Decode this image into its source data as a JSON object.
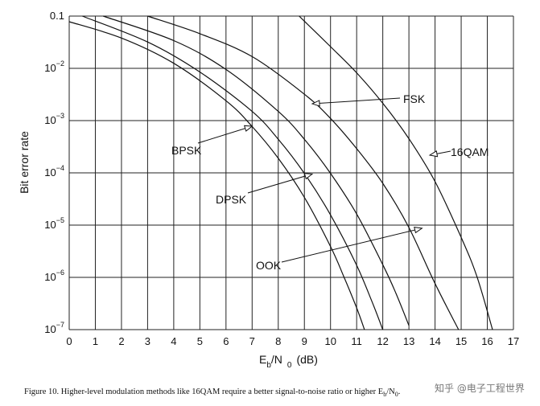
{
  "chart_data": {
    "type": "line",
    "title": "",
    "xlabel": "E_b/N_0 (dB)",
    "xlabel_parts": {
      "e": "E",
      "b": "b",
      "slash_n": "/N",
      "zero": "0",
      "unit": "(dB)"
    },
    "ylabel": "Bit error rate",
    "x_ticks": [
      "0",
      "1",
      "2",
      "3",
      "4",
      "5",
      "6",
      "7",
      "8",
      "9",
      "10",
      "11",
      "12",
      "13",
      "14",
      "15",
      "16",
      "17"
    ],
    "xlim": [
      0,
      17
    ],
    "y_scale": "log",
    "ylim": [
      1e-07,
      0.1
    ],
    "y_ticks": [
      {
        "value": 0.1,
        "base": "0.1",
        "exp": ""
      },
      {
        "value": 0.01,
        "base": "10",
        "exp": "−2"
      },
      {
        "value": 0.001,
        "base": "10",
        "exp": "−3"
      },
      {
        "value": 0.0001,
        "base": "10",
        "exp": "−4"
      },
      {
        "value": 1e-05,
        "base": "10",
        "exp": "−5"
      },
      {
        "value": 1e-06,
        "base": "10",
        "exp": "−6"
      },
      {
        "value": 1e-07,
        "base": "10",
        "exp": "−7"
      }
    ],
    "grid": true,
    "series": [
      {
        "name": "BPSK",
        "x": [
          0,
          2,
          4,
          6,
          7,
          8,
          9,
          10,
          10.5,
          11,
          11.3
        ],
        "y": [
          0.078,
          0.038,
          0.0125,
          0.0024,
          0.00077,
          0.00019,
          3.4e-05,
          3.9e-06,
          1.06e-06,
          2.6e-07,
          1e-07
        ]
      },
      {
        "name": "DPSK",
        "x": [
          0.5,
          3,
          5,
          7,
          8,
          9,
          10,
          11,
          11.6,
          12
        ],
        "y": [
          0.1,
          0.032,
          0.0085,
          0.0015,
          0.00044,
          9.8e-05,
          1.57e-05,
          1.7e-06,
          3.3e-07,
          1e-07
        ]
      },
      {
        "name": "OOK",
        "x": [
          1.3,
          4,
          6,
          8,
          9,
          10,
          11,
          12,
          12.5,
          13
        ],
        "y": [
          0.1,
          0.034,
          0.0095,
          0.0015,
          0.00044,
          9.8e-05,
          1.63e-05,
          1.75e-06,
          5e-07,
          1.2e-07
        ]
      },
      {
        "name": "FSK",
        "x": [
          3,
          5,
          7,
          9,
          10,
          11,
          12,
          13,
          14,
          14.9
        ],
        "y": [
          0.1,
          0.046,
          0.0168,
          0.0032,
          0.0011,
          0.00029,
          6.3e-05,
          9e-06,
          7.6e-07,
          1e-07
        ]
      },
      {
        "name": "16QAM",
        "x": [
          8.8,
          10,
          11,
          12,
          13,
          14,
          15,
          15.6,
          16.2
        ],
        "y": [
          0.1,
          0.026,
          0.0082,
          0.00215,
          0.00045,
          6.8e-05,
          5.8e-06,
          1.05e-06,
          1e-07
        ]
      }
    ],
    "annotations": [
      {
        "text": "BPSK",
        "arrow_to": [
          7.0,
          0.00078
        ]
      },
      {
        "text": "DPSK",
        "arrow_to": [
          9.3,
          9.5e-05
        ]
      },
      {
        "text": "OOK",
        "arrow_to": [
          13.5,
          8.7e-06
        ]
      },
      {
        "text": "FSK",
        "arrow_to": [
          9.3,
          0.0021
        ]
      },
      {
        "text": "16QAM",
        "arrow_to": [
          13.8,
          0.000218
        ]
      }
    ]
  },
  "caption": {
    "text": "Figure 10. Higher-level modulation methods like 16QAM require a better signal-to-noise ratio or higher E",
    "sub_b": "b",
    "slash_n": "/N",
    "sub_0": "0",
    "end": "."
  },
  "watermark": "知乎 @电子工程世界"
}
